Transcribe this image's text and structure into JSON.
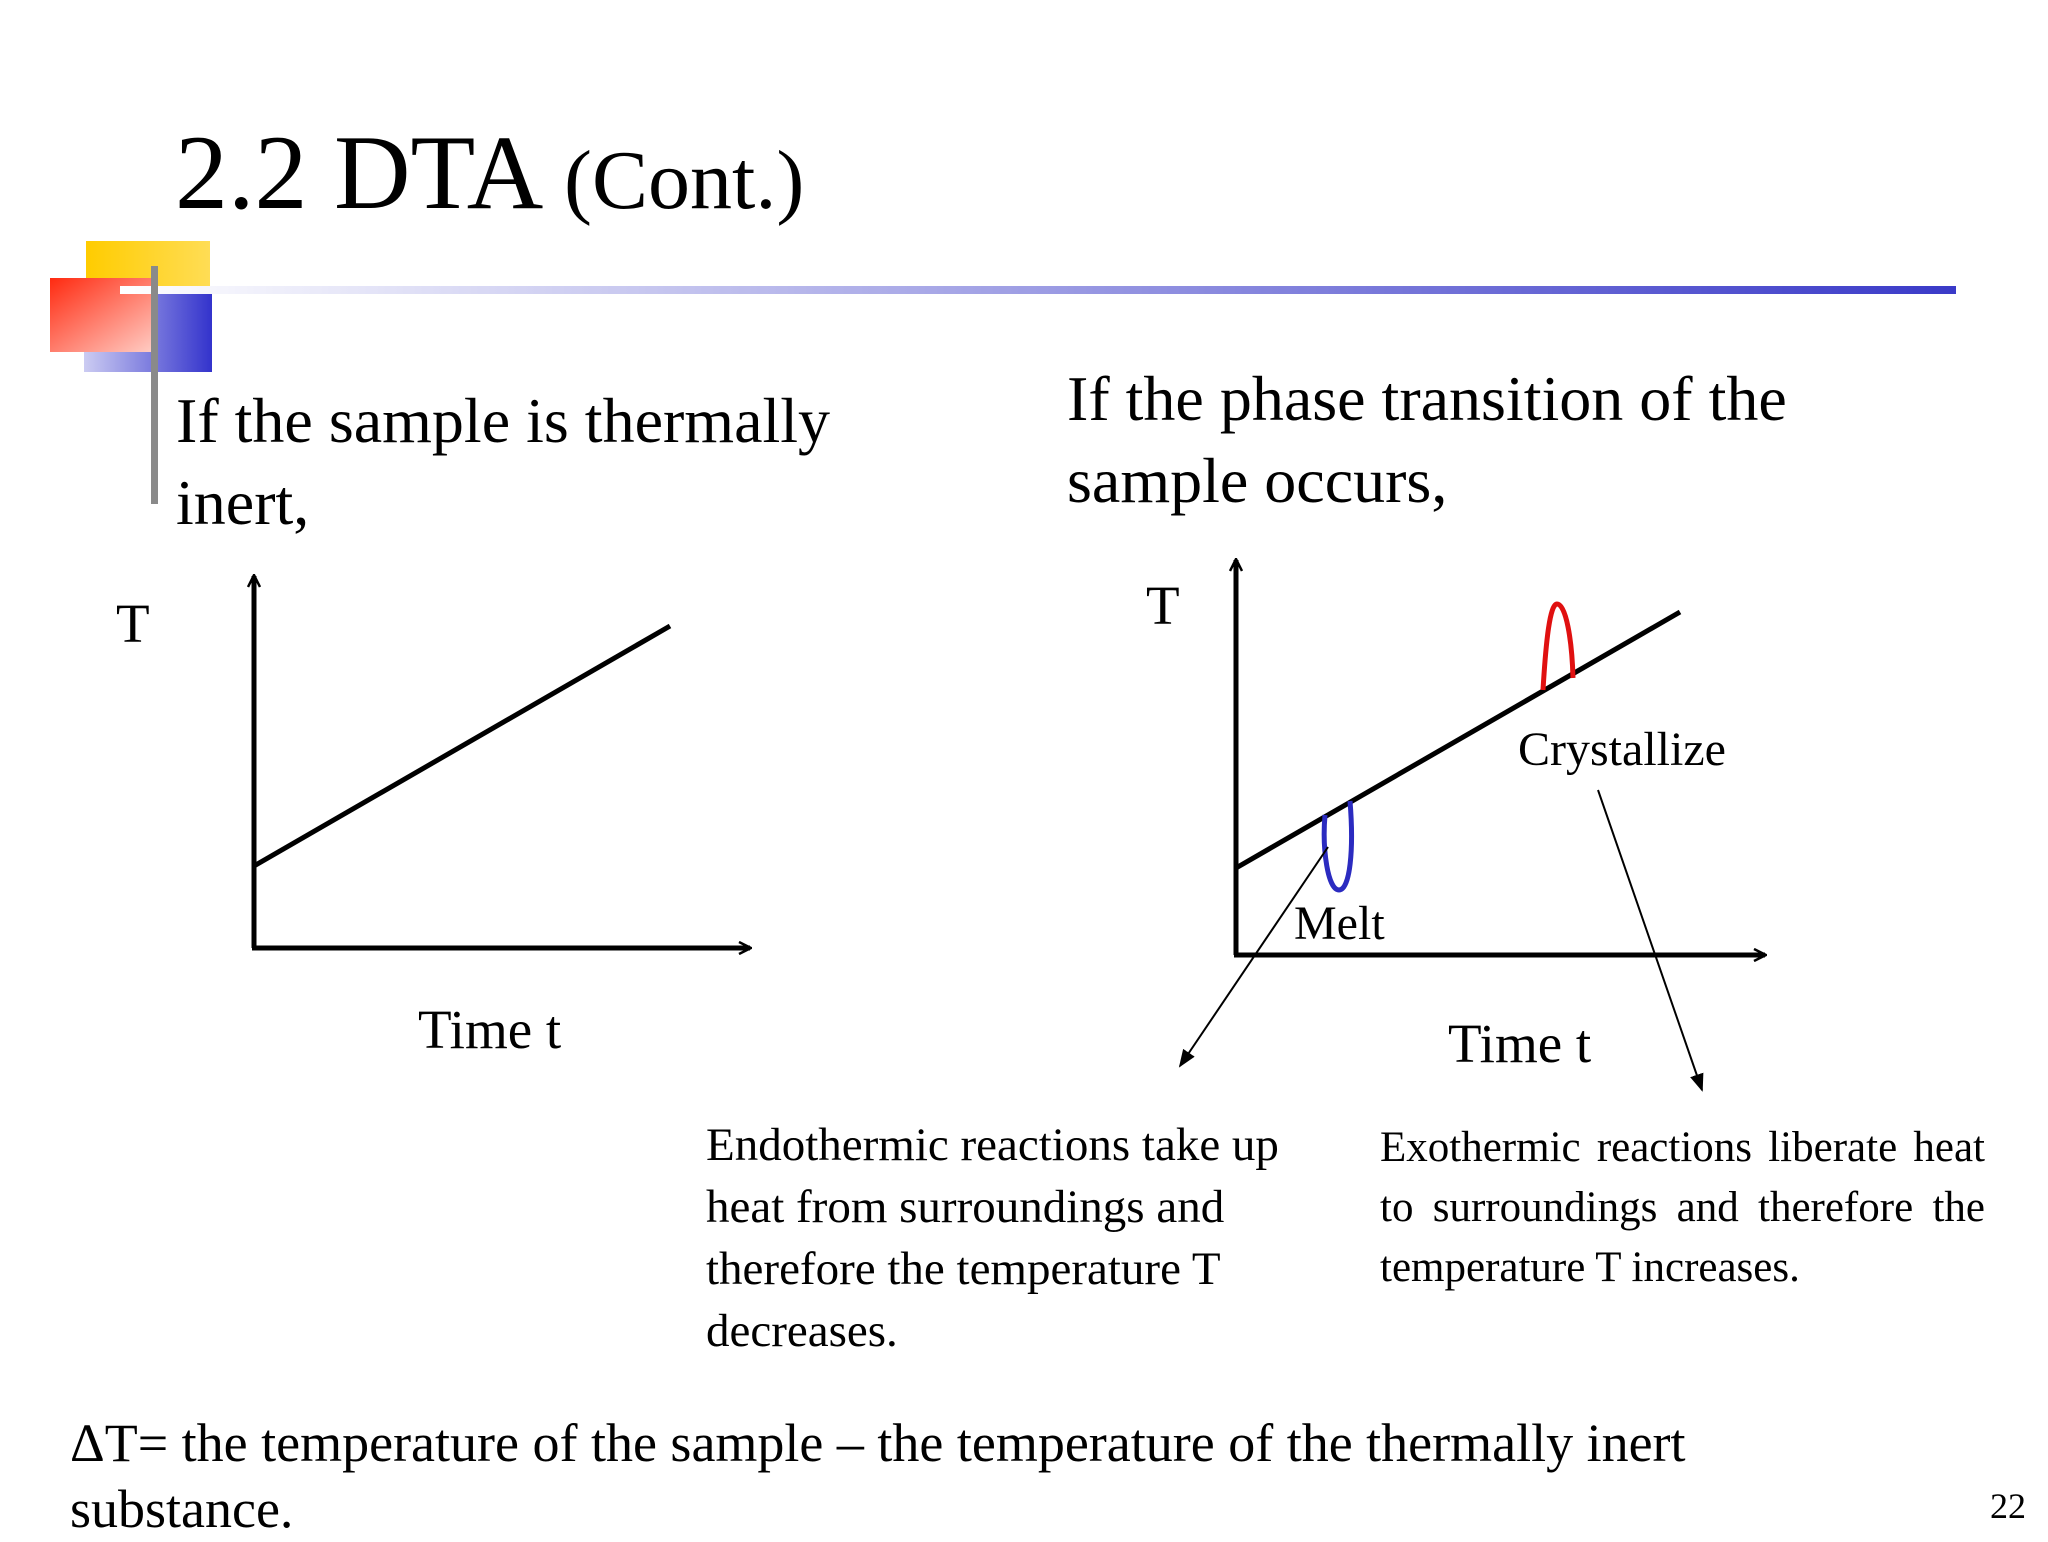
{
  "slide": {
    "title_main": "2.2 DTA",
    "title_sub": "(Cont.)",
    "page_number": "22",
    "accent_colors": {
      "yellow": "#ffcc00",
      "red": "#ff3b1a",
      "blue": "#3333cc",
      "rule_blue": "#3a3ac8"
    }
  },
  "left_panel": {
    "heading": "If the sample is thermally inert,",
    "axis_y_label": "T",
    "axis_x_label": "Time t"
  },
  "right_panel": {
    "heading": "If the phase transition of the sample occurs,",
    "axis_y_label": "T",
    "axis_x_label": "Time t",
    "melt_label": "Melt",
    "crystallize_label": "Crystallize",
    "melt_color": "#2b2bc0",
    "crystallize_color": "#e01010"
  },
  "notes": {
    "endothermic": "Endothermic reactions take up heat from surroundings and therefore the temperature T decreases.",
    "exothermic": "Exothermic reactions liberate heat to surroundings and therefore the temperature T increases."
  },
  "footer": {
    "delta_definition": "ΔT= the temperature of the sample – the temperature of the thermally inert substance."
  }
}
